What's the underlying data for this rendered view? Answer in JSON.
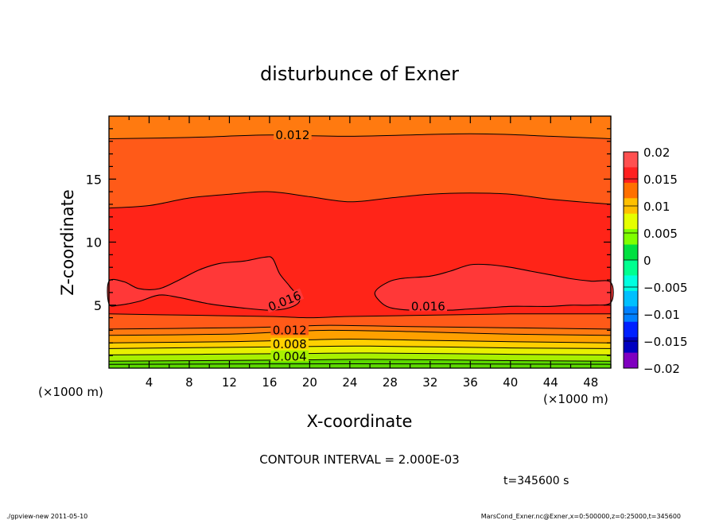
{
  "chart_data": {
    "type": "contour",
    "title": "disturbunce of Exner",
    "xlabel": "X-coordinate",
    "ylabel": "Z-coordinate",
    "xunit": "(×1000 m)",
    "xlim": [
      0,
      50
    ],
    "ylim": [
      0,
      20
    ],
    "xticks": [
      4,
      8,
      12,
      16,
      20,
      24,
      28,
      32,
      36,
      40,
      44,
      48
    ],
    "yticks": [
      5,
      10,
      15
    ],
    "contour_interval_text": "CONTOUR INTERVAL = 2.000E-03",
    "time_text": "t=345600 s",
    "contour_labels": [
      {
        "text": "0.012",
        "x": 18.3,
        "z": 18.5
      },
      {
        "text": "0.016",
        "x": 17.5,
        "z": 5.3
      },
      {
        "text": "0.016",
        "x": 31.8,
        "z": 4.9
      },
      {
        "text": "0.012",
        "x": 18.0,
        "z": 3.0
      },
      {
        "text": "0.008",
        "x": 18.0,
        "z": 1.9
      },
      {
        "text": "0.004",
        "x": 18.0,
        "z": 0.9
      }
    ],
    "colorbar": {
      "levels": [
        "0.02",
        "0.015",
        "0.01",
        "0.005",
        "0",
        "−0.005",
        "−0.01",
        "−0.015",
        "−0.02"
      ],
      "colors": [
        "#ff5050",
        "#ff2020",
        "#ff7000",
        "#ffc000",
        "#e6ff00",
        "#80ff00",
        "#00e040",
        "#00ff90",
        "#00ffe0",
        "#00c0ff",
        "#0080ff",
        "#0020ff",
        "#0000c0",
        "#8000c0"
      ]
    },
    "fill_colors": {
      "band_0_002": "#5cd800",
      "band_002_004": "#a8f000",
      "band_004_006": "#e8f000",
      "band_006_008": "#ffd000",
      "band_008_010": "#ffa000",
      "band_010_012": "#ff7a10",
      "band_012_014": "#ff5a18",
      "band_014_016": "#ff2418",
      "band_016_018": "#ff3838"
    }
  },
  "footer": {
    "left": "./gpview-new 2011-05-10",
    "right": "MarsCond_Exner.nc@Exner,x=0:500000,z=0:25000,t=345600"
  }
}
